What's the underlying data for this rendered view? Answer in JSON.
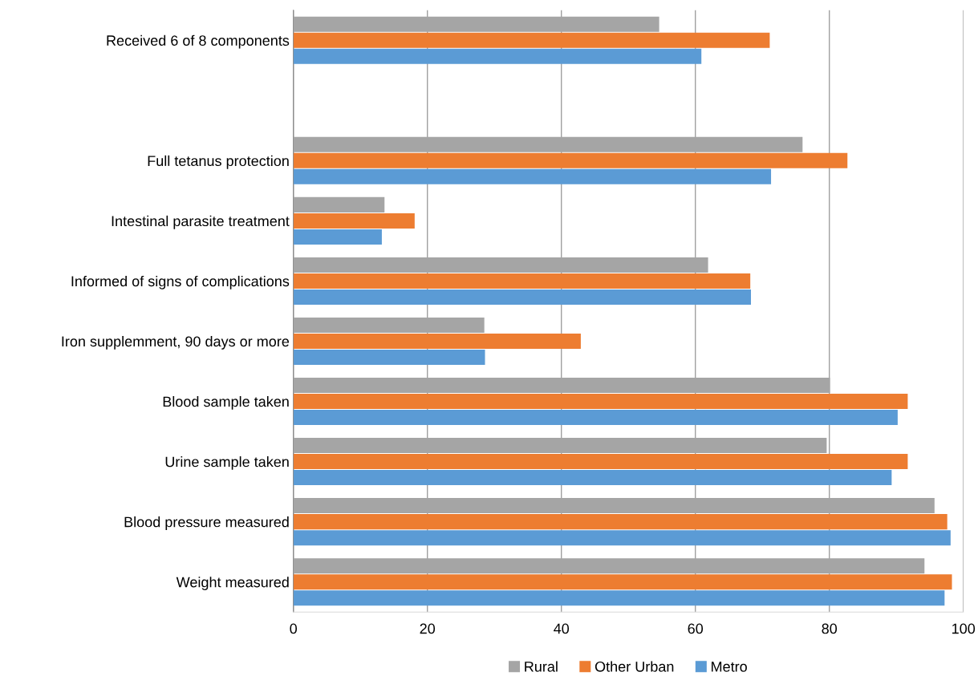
{
  "chart_data": {
    "type": "bar",
    "orientation": "horizontal",
    "categories": [
      "Received 6 of 8 components",
      null,
      "Full tetanus protection",
      "Intestinal parasite treatment",
      "Informed of signs of complications",
      "Iron supplemment, 90 days or more",
      "Blood sample taken",
      "Urine sample taken",
      "Blood pressure measured",
      "Weight measured"
    ],
    "series": [
      {
        "name": "Rural",
        "color": "#a5a5a5",
        "values": [
          54.6,
          null,
          76.0,
          13.6,
          61.9,
          28.5,
          80.1,
          79.6,
          95.7,
          94.2
        ]
      },
      {
        "name": "Other Urban",
        "color": "#ed7d31",
        "values": [
          71.1,
          null,
          82.7,
          18.1,
          68.2,
          42.9,
          91.7,
          91.7,
          97.6,
          98.3
        ]
      },
      {
        "name": "Metro",
        "color": "#5b9bd5",
        "values": [
          60.9,
          null,
          71.3,
          13.2,
          68.3,
          28.6,
          90.2,
          89.3,
          98.1,
          97.2
        ]
      }
    ],
    "xlim": [
      0,
      100
    ],
    "xticks": [
      0,
      20,
      40,
      60,
      80,
      100
    ],
    "grid": "x",
    "legend": "bottom"
  }
}
